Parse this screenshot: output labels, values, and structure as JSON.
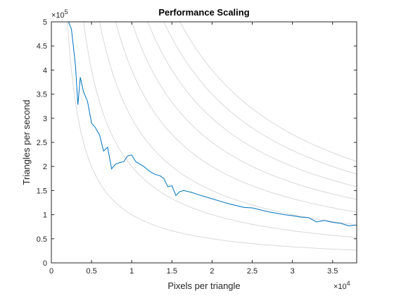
{
  "chart_data": {
    "type": "line",
    "title": "Performance Scaling",
    "xlabel": "Pixels per triangle",
    "ylabel": "Triangles per second",
    "xlim": [
      0,
      38000
    ],
    "ylim": [
      0,
      500000
    ],
    "x_ticks": [
      0,
      5000,
      10000,
      15000,
      20000,
      25000,
      30000,
      35000
    ],
    "x_tick_labels": [
      "0",
      "0.5",
      "1",
      "1.5",
      "2",
      "2.5",
      "3",
      "3.5"
    ],
    "y_ticks": [
      0,
      50000,
      100000,
      150000,
      200000,
      250000,
      300000,
      350000,
      400000,
      450000,
      500000
    ],
    "y_tick_labels": [
      "0",
      "0.5",
      "1",
      "1.5",
      "2",
      "2.5",
      "3",
      "3.5",
      "4",
      "4.5",
      "5"
    ],
    "x_exponent_label": "×10",
    "x_exponent_power": "4",
    "y_exponent_label": "×10",
    "y_exponent_power": "5",
    "grid": false,
    "colors": {
      "series": "#0072BD",
      "reference": "#D9D9D9",
      "axes": "#262626"
    },
    "reference_curves": {
      "description_units": "constant pixels-per-second hyperbolas y = k / x",
      "k_values": [
        1000000000,
        2000000000,
        3000000000,
        4000000000,
        5000000000,
        6000000000,
        7000000000,
        8000000000
      ]
    },
    "series": [
      {
        "x": [
          2000,
          2500,
          3000,
          3300,
          3600,
          4000,
          4500,
          5000,
          5500,
          6000,
          6500,
          7000,
          7500,
          8000,
          8500,
          9000,
          9500,
          10000,
          10500,
          11000,
          11500,
          12000,
          12500,
          13000,
          13500,
          14000,
          14500,
          15000,
          15500,
          16000,
          16500,
          17000,
          17500,
          18000,
          19000,
          20000,
          21000,
          22000,
          23000,
          24000,
          25000,
          26000,
          27000,
          28000,
          29000,
          30000,
          31000,
          32000,
          33000,
          34000,
          35000,
          36000,
          37000,
          38000
        ],
        "values": [
          505000,
          485000,
          410000,
          328000,
          385000,
          355000,
          335000,
          290000,
          280000,
          265000,
          232000,
          240000,
          195000,
          205000,
          208000,
          210000,
          222000,
          224000,
          210000,
          205000,
          200000,
          193000,
          187000,
          183000,
          181000,
          175000,
          158000,
          160000,
          140000,
          148000,
          150000,
          148000,
          146000,
          143000,
          138000,
          133000,
          128000,
          123000,
          119000,
          115000,
          114000,
          110000,
          106000,
          103000,
          100000,
          98000,
          95000,
          94000,
          85000,
          88000,
          84000,
          82000,
          77000,
          78000
        ]
      }
    ]
  }
}
